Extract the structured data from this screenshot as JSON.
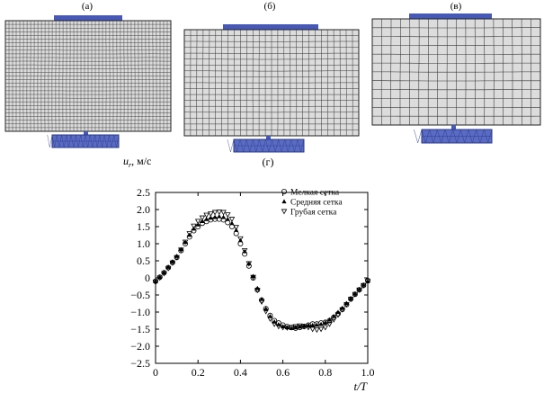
{
  "mesh_panels": [
    {
      "label": "(а)"
    },
    {
      "label": "(б)"
    },
    {
      "label": "(в)"
    }
  ],
  "colors": {
    "electrode": "#4659b8",
    "mesh_line": "#2a2a2a",
    "mesh_fill": "#d8d8d8",
    "chart_marker": "#000000"
  },
  "chart_data": {
    "type": "scatter",
    "panel_label": "(г)",
    "ylabel": "u_r, м/с",
    "ylabel_main": "u",
    "ylabel_sub": "r",
    "ylabel_unit": ", м/с",
    "xlabel": "t/T",
    "xlim": [
      0,
      1.0
    ],
    "ylim": [
      -2.5,
      2.5
    ],
    "xticks": [
      "0",
      "0.2",
      "0.4",
      "0.6",
      "0.8",
      "1.0"
    ],
    "yticks": [
      "2.5",
      "2.0",
      "1.5",
      "1.0",
      "0.5",
      "0",
      "−0.5",
      "−1.0",
      "−1.5",
      "−2.0",
      "−2.5"
    ],
    "legend_position": "top-right",
    "x": [
      0,
      0.02,
      0.04,
      0.06,
      0.08,
      0.1,
      0.12,
      0.14,
      0.16,
      0.18,
      0.2,
      0.22,
      0.24,
      0.26,
      0.28,
      0.3,
      0.32,
      0.34,
      0.36,
      0.38,
      0.4,
      0.42,
      0.44,
      0.46,
      0.48,
      0.5,
      0.52,
      0.54,
      0.56,
      0.58,
      0.6,
      0.62,
      0.64,
      0.66,
      0.68,
      0.7,
      0.72,
      0.74,
      0.76,
      0.78,
      0.8,
      0.82,
      0.84,
      0.86,
      0.88,
      0.9,
      0.92,
      0.94,
      0.96,
      0.98,
      1.0
    ],
    "series": [
      {
        "name": "Мелкая сетка",
        "marker": "circle",
        "values": [
          -0.1,
          0.02,
          0.15,
          0.3,
          0.45,
          0.6,
          0.8,
          1.0,
          1.2,
          1.38,
          1.5,
          1.6,
          1.65,
          1.7,
          1.72,
          1.72,
          1.7,
          1.62,
          1.5,
          1.3,
          1.0,
          0.7,
          0.35,
          0.0,
          -0.35,
          -0.65,
          -0.9,
          -1.1,
          -1.25,
          -1.32,
          -1.38,
          -1.42,
          -1.45,
          -1.47,
          -1.45,
          -1.42,
          -1.38,
          -1.35,
          -1.35,
          -1.32,
          -1.3,
          -1.25,
          -1.15,
          -1.05,
          -0.92,
          -0.78,
          -0.62,
          -0.48,
          -0.35,
          -0.22,
          -0.08
        ]
      },
      {
        "name": "Средняя сетка",
        "marker": "triangle-up",
        "values": [
          -0.1,
          0.03,
          0.16,
          0.32,
          0.48,
          0.64,
          0.84,
          1.05,
          1.26,
          1.44,
          1.56,
          1.66,
          1.72,
          1.76,
          1.78,
          1.8,
          1.78,
          1.72,
          1.6,
          1.4,
          1.1,
          0.78,
          0.42,
          0.05,
          -0.3,
          -0.62,
          -0.9,
          -1.12,
          -1.28,
          -1.36,
          -1.42,
          -1.45,
          -1.47,
          -1.45,
          -1.43,
          -1.4,
          -1.38,
          -1.38,
          -1.37,
          -1.35,
          -1.3,
          -1.22,
          -1.12,
          -1.0,
          -0.88,
          -0.74,
          -0.6,
          -0.46,
          -0.33,
          -0.2,
          -0.1
        ]
      },
      {
        "name": "Грубая сетка",
        "marker": "triangle-down",
        "values": [
          -0.12,
          0.0,
          0.13,
          0.28,
          0.44,
          0.6,
          0.82,
          1.05,
          1.3,
          1.52,
          1.66,
          1.76,
          1.84,
          1.88,
          1.92,
          1.93,
          1.92,
          1.85,
          1.72,
          1.48,
          1.15,
          0.8,
          0.42,
          0.02,
          -0.36,
          -0.7,
          -0.98,
          -1.2,
          -1.35,
          -1.42,
          -1.45,
          -1.46,
          -1.45,
          -1.42,
          -1.4,
          -1.42,
          -1.45,
          -1.5,
          -1.52,
          -1.5,
          -1.45,
          -1.35,
          -1.22,
          -1.08,
          -0.93,
          -0.78,
          -0.62,
          -0.48,
          -0.35,
          -0.22,
          -0.1
        ]
      }
    ]
  }
}
